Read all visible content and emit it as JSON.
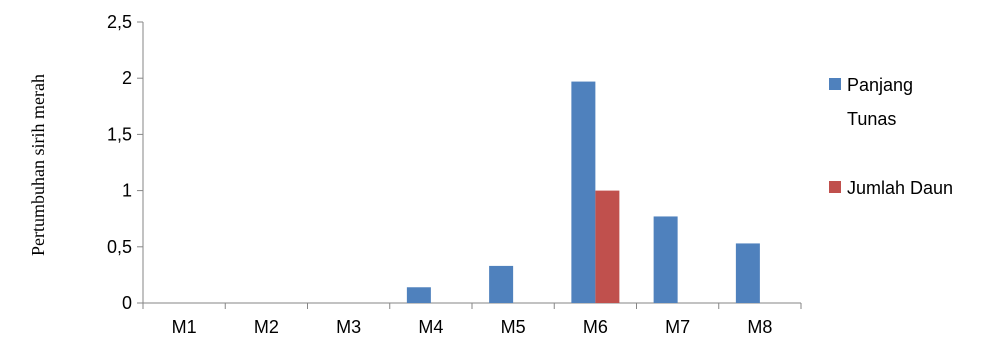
{
  "chart_data": {
    "type": "bar",
    "ylabel": "Pertumbuhan sirih merah",
    "ylim": [
      0,
      2.5
    ],
    "yticks": [
      "0",
      "0,5",
      "1",
      "1,5",
      "2",
      "2,5"
    ],
    "categories": [
      "M1",
      "M2",
      "M3",
      "M4",
      "M5",
      "M6",
      "M7",
      "M8"
    ],
    "series": [
      {
        "name_lines": [
          "Panjang",
          "Tunas"
        ],
        "color": "#4F81BD",
        "values": [
          0,
          0,
          0,
          0.14,
          0.33,
          1.97,
          0.77,
          0.53
        ]
      },
      {
        "name_lines": [
          "Jumlah Daun"
        ],
        "color": "#C0504D",
        "values": [
          0,
          0,
          0,
          0,
          0,
          1.0,
          0,
          0
        ]
      }
    ],
    "grid": false,
    "legend": "right"
  }
}
